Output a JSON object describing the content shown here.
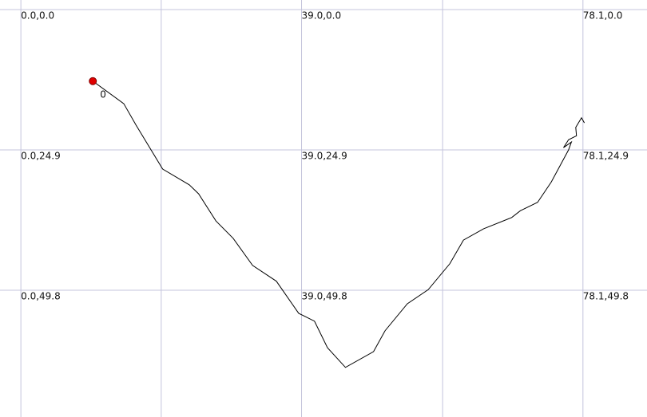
{
  "chart_data": {
    "type": "line",
    "x": [
      10.0,
      14.3,
      16.0,
      19.7,
      23.4,
      24.7,
      27.1,
      29.5,
      32.2,
      35.5,
      38.6,
      40.8,
      42.6,
      45.1,
      49.0,
      50.6,
      53.7,
      56.6,
      59.6,
      61.5,
      64.3,
      68.2,
      69.4,
      71.8,
      73.7,
      76.1,
      76.5,
      75.4,
      76.1,
      77.2,
      77.1,
      77.9,
      78.3
    ],
    "series": [
      {
        "color": "#000000",
        "values": [
          12.7,
          16.7,
          20.5,
          28.3,
          31.1,
          32.7,
          37.5,
          40.6,
          45.4,
          48.2,
          53.9,
          55.3,
          60.0,
          63.5,
          60.7,
          57.0,
          52.2,
          49.7,
          45.1,
          40.9,
          38.9,
          36.9,
          35.7,
          34.2,
          30.6,
          24.9,
          23.5,
          24.5,
          23.1,
          22.4,
          20.9,
          19.2,
          20.1
        ]
      }
    ],
    "start_marker": {
      "label": "0",
      "color": "#e00000"
    },
    "xlim": [
      -2.9,
      87.0
    ],
    "ylim": [
      72.3,
      -1.7
    ],
    "xticks": [
      0,
      19.5,
      39.0,
      58.6,
      78.1
    ],
    "yticks": [
      0,
      24.9,
      49.8
    ],
    "grid": true,
    "grid_labels": [
      {
        "label": "0.0,0.0",
        "x": 0,
        "y": 0
      },
      {
        "label": "39.0,0.0",
        "x": 39.0,
        "y": 0
      },
      {
        "label": "78.1,0.0",
        "x": 78.1,
        "y": 0
      },
      {
        "label": "0.0,24.9",
        "x": 0,
        "y": 24.9
      },
      {
        "label": "39.0,24.9",
        "x": 39.0,
        "y": 24.9
      },
      {
        "label": "78.1,24.9",
        "x": 78.1,
        "y": 24.9
      },
      {
        "label": "0.0,49.8",
        "x": 0,
        "y": 49.8
      },
      {
        "label": "39.0,49.8",
        "x": 39.0,
        "y": 49.8
      },
      {
        "label": "78.1,49.8",
        "x": 78.1,
        "y": 49.8
      }
    ]
  }
}
